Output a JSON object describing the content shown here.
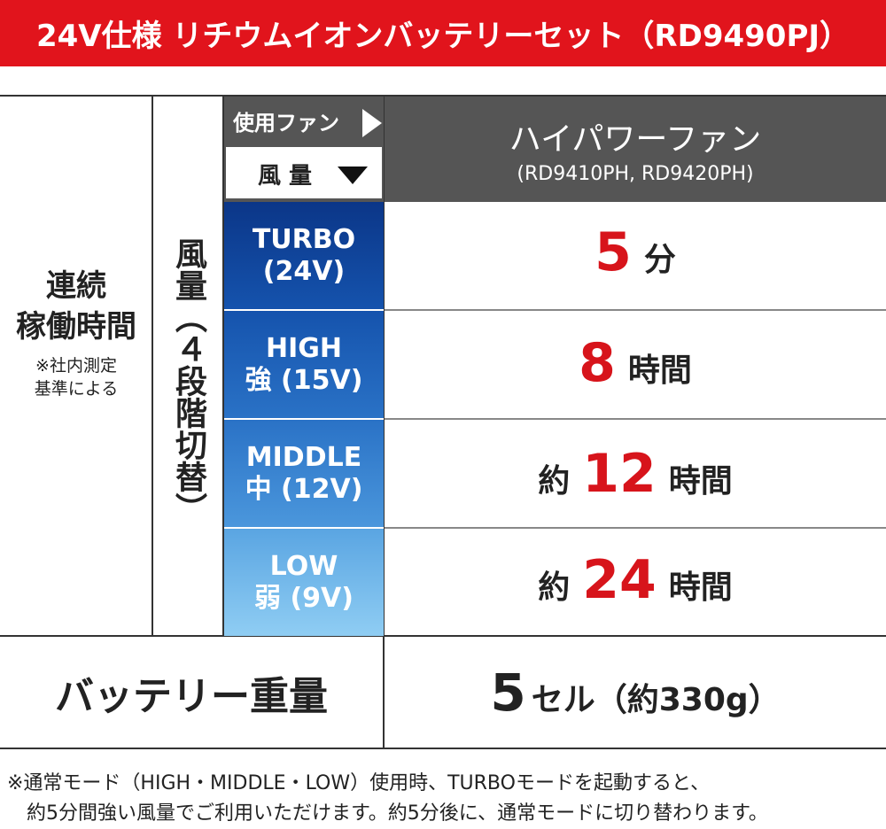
{
  "header": {
    "title": "24V仕様 リチウムイオンバッテリーセット（RD9490PJ）"
  },
  "table": {
    "row_header": {
      "title_lines": [
        "連続",
        "稼働時間"
      ],
      "note_lines": [
        "※社内測定",
        "基準による"
      ]
    },
    "volume_header": "風量（４段階切替）",
    "fan_label": "使用ファン",
    "volume_label": "風 量",
    "fan_name": "ハイパワーファン",
    "fan_models": "(RD9410PH, RD9420PH)",
    "modes": [
      {
        "name": "TURBO",
        "voltage": "(24V)"
      },
      {
        "name": "HIGH",
        "voltage": "強 (15V)"
      },
      {
        "name": "MIDDLE",
        "voltage": "中 (12V)"
      },
      {
        "name": "LOW",
        "voltage": "弱 (9V)"
      }
    ],
    "runtimes": [
      {
        "number": "5",
        "unit": "分"
      },
      {
        "number": "8",
        "unit": "時間"
      },
      {
        "prefix": "約",
        "number": "12",
        "unit": "時間"
      },
      {
        "prefix": "約",
        "number": "24",
        "unit": "時間"
      }
    ],
    "battery": {
      "label": "バッテリー重量",
      "number": "5",
      "unit": "セル（約330g）"
    }
  },
  "footnote": {
    "lines": [
      "※通常モード（HIGH・MIDDLE・LOW）使用時、TURBOモードを起動すると、",
      "約5分間強い風量でご利用いただけます。約5分後に、通常モードに切り替わります。"
    ]
  }
}
